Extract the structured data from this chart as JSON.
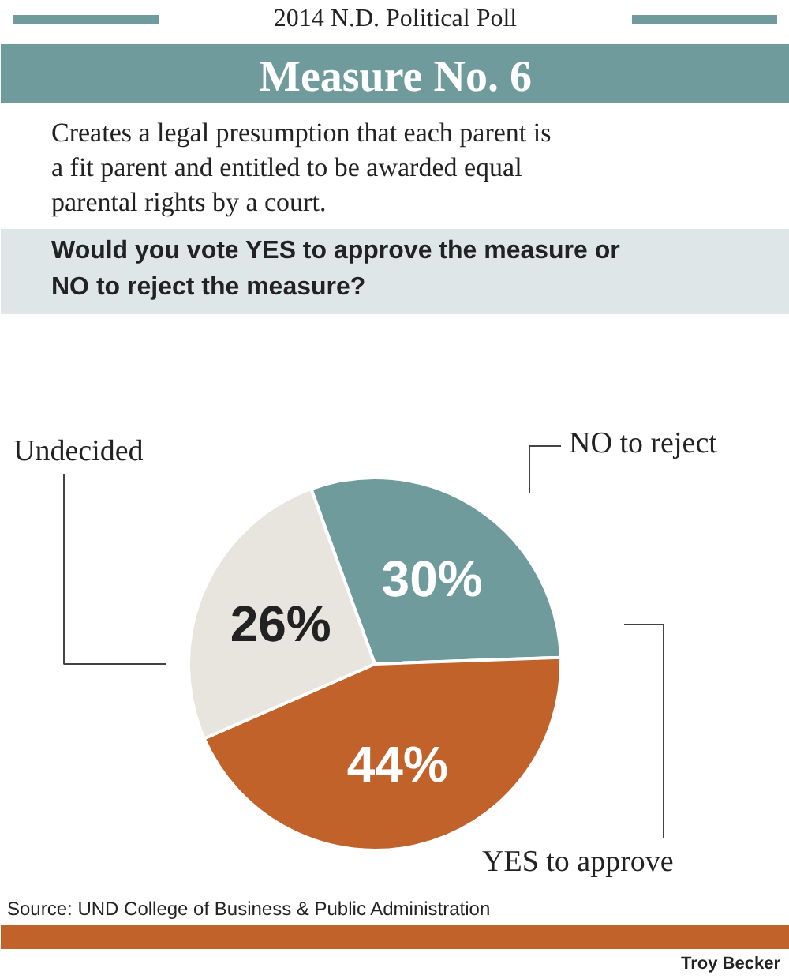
{
  "chart_data": {
    "type": "pie",
    "title": "Measure No. 6",
    "subtitle": "Creates a legal presumption that each parent is a fit parent and entitled to be awarded equal parental rights by a court.",
    "annotations": [
      "2014 N.D. Political Poll",
      "Would you vote YES to approve the measure or NO to reject the measure?",
      "Source: UND College of Business & Public Administration",
      "Troy Becker"
    ],
    "categories": [
      "NO to reject",
      "YES to approve",
      "Undecided"
    ],
    "values": [
      30,
      44,
      26
    ],
    "colors": [
      "#6f9b9d",
      "#c2622b",
      "#e7e5dd"
    ],
    "value_labels": [
      "30%",
      "44%",
      "26%"
    ]
  }
}
